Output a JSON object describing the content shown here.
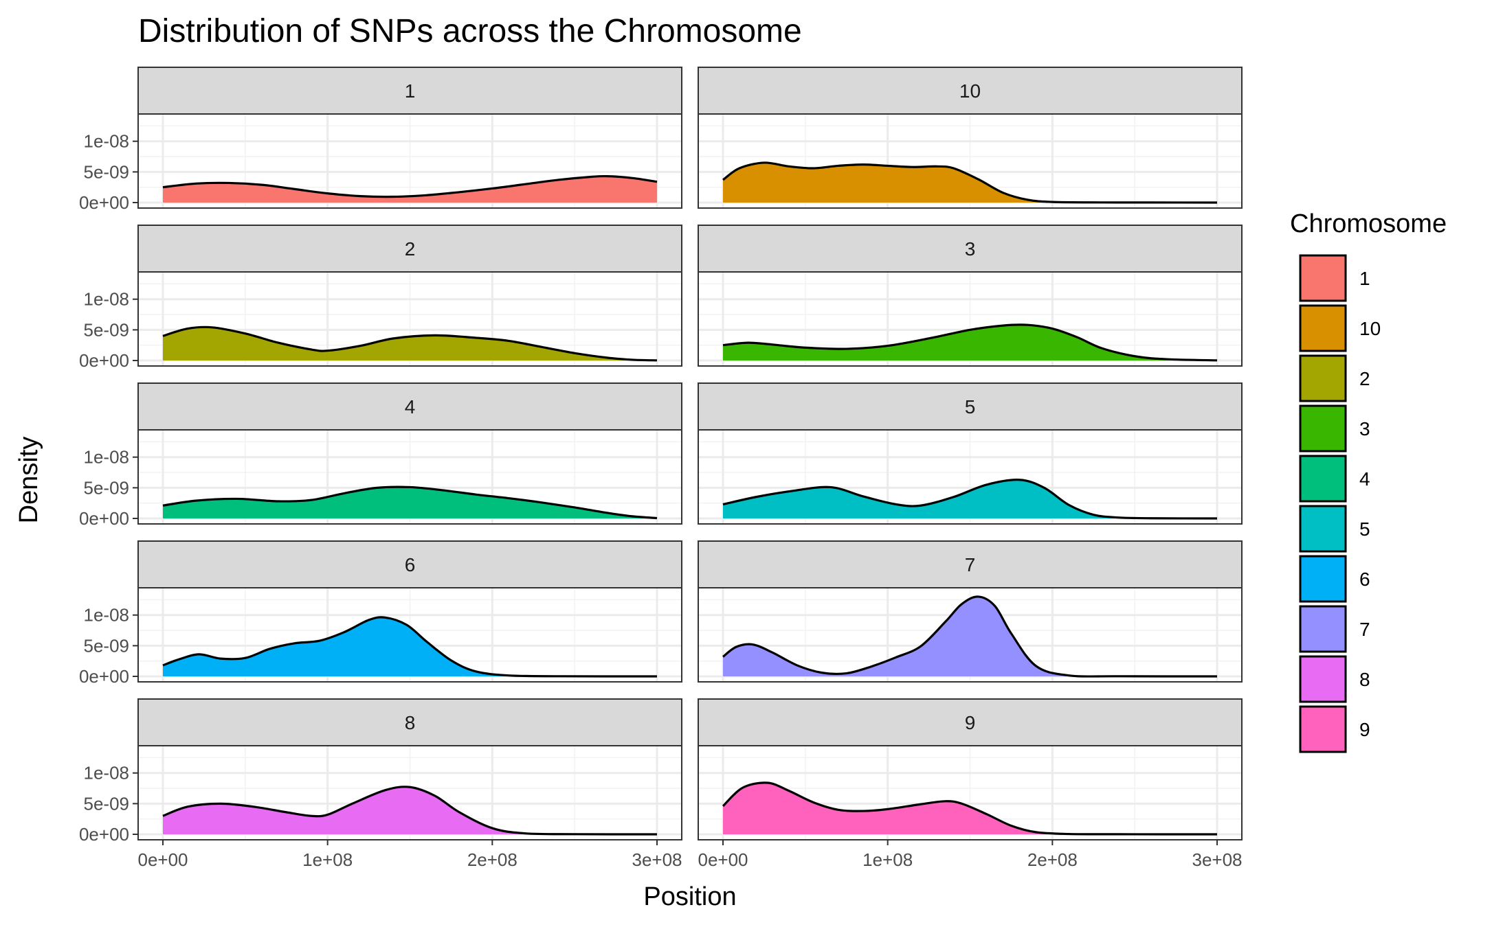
{
  "chart_data": {
    "type": "area",
    "subtype": "faceted-density",
    "title": "Distribution of SNPs across the Chromosome",
    "xlabel": "Position",
    "ylabel": "Density",
    "xlim": [
      0,
      300000000
    ],
    "ylim": [
      0,
      1.4e-08
    ],
    "x_ticks": [
      {
        "value": 0,
        "label": "0e+00"
      },
      {
        "value": 100000000,
        "label": "1e+08"
      },
      {
        "value": 200000000,
        "label": "2e+08"
      },
      {
        "value": 300000000,
        "label": "3e+08"
      }
    ],
    "y_ticks": [
      {
        "value": 0,
        "label": "0e+00"
      },
      {
        "value": 5e-09,
        "label": "5e-09"
      },
      {
        "value": 1e-08,
        "label": "1e-08"
      }
    ],
    "legend": {
      "title": "Chromosome",
      "position": "right",
      "entries": [
        {
          "label": "1",
          "color": "#F8766D"
        },
        {
          "label": "10",
          "color": "#D89000"
        },
        {
          "label": "2",
          "color": "#A3A500"
        },
        {
          "label": "3",
          "color": "#39B600"
        },
        {
          "label": "4",
          "color": "#00BF7D"
        },
        {
          "label": "5",
          "color": "#00BFC4"
        },
        {
          "label": "6",
          "color": "#00B0F6"
        },
        {
          "label": "7",
          "color": "#9590FF"
        },
        {
          "label": "8",
          "color": "#E76BF3"
        },
        {
          "label": "9",
          "color": "#FF62BC"
        }
      ]
    },
    "panel_order": [
      "1",
      "10",
      "2",
      "3",
      "4",
      "5",
      "6",
      "7",
      "8",
      "9"
    ],
    "series": [
      {
        "name": "1",
        "color": "#F8766D",
        "x": [
          0,
          20000000,
          40000000,
          60000000,
          80000000,
          100000000,
          120000000,
          140000000,
          160000000,
          180000000,
          200000000,
          220000000,
          240000000,
          260000000,
          270000000,
          285000000,
          300000000
        ],
        "y": [
          2.5e-09,
          3.1e-09,
          3.2e-09,
          2.9e-09,
          2.2e-09,
          1.5e-09,
          1.05e-09,
          9.5e-10,
          1.2e-09,
          1.7e-09,
          2.3e-09,
          3e-09,
          3.7e-09,
          4.2e-09,
          4.3e-09,
          4e-09,
          3.4e-09
        ]
      },
      {
        "name": "10",
        "color": "#D89000",
        "x": [
          0,
          10000000,
          25000000,
          40000000,
          55000000,
          70000000,
          85000000,
          100000000,
          115000000,
          130000000,
          140000000,
          155000000,
          170000000,
          185000000,
          200000000,
          230000000,
          260000000,
          300000000
        ],
        "y": [
          3.7e-09,
          5.6e-09,
          6.5e-09,
          5.9e-09,
          5.6e-09,
          6e-09,
          6.2e-09,
          6e-09,
          5.8e-09,
          5.9e-09,
          5.6e-09,
          3.8e-09,
          1.6e-09,
          4.5e-10,
          1e-10,
          2e-11,
          1e-11,
          0.0
        ]
      },
      {
        "name": "2",
        "color": "#A3A500",
        "x": [
          0,
          15000000,
          30000000,
          50000000,
          70000000,
          90000000,
          100000000,
          120000000,
          140000000,
          165000000,
          190000000,
          210000000,
          230000000,
          250000000,
          270000000,
          285000000,
          300000000
        ],
        "y": [
          4e-09,
          5.2e-09,
          5.4e-09,
          4.4e-09,
          2.9e-09,
          1.8e-09,
          1.6e-09,
          2.4e-09,
          3.6e-09,
          4.1e-09,
          3.7e-09,
          3.2e-09,
          2.2e-09,
          1.2e-09,
          4.5e-10,
          1.2e-10,
          2e-11
        ]
      },
      {
        "name": "3",
        "color": "#39B600",
        "x": [
          0,
          15000000,
          30000000,
          50000000,
          75000000,
          100000000,
          125000000,
          150000000,
          170000000,
          185000000,
          200000000,
          215000000,
          230000000,
          250000000,
          270000000,
          300000000
        ],
        "y": [
          2.5e-09,
          2.9e-09,
          2.6e-09,
          2.1e-09,
          1.9e-09,
          2.4e-09,
          3.6e-09,
          5e-09,
          5.7e-09,
          5.8e-09,
          5.2e-09,
          3.8e-09,
          2e-09,
          7e-10,
          2e-10,
          2e-11
        ]
      },
      {
        "name": "4",
        "color": "#00BF7D",
        "x": [
          0,
          20000000,
          45000000,
          70000000,
          90000000,
          110000000,
          130000000,
          150000000,
          170000000,
          190000000,
          210000000,
          230000000,
          250000000,
          270000000,
          285000000,
          300000000
        ],
        "y": [
          2.1e-09,
          2.9e-09,
          3.2e-09,
          2.8e-09,
          3e-09,
          4.1e-09,
          5e-09,
          5.1e-09,
          4.6e-09,
          3.9e-09,
          3.3e-09,
          2.6e-09,
          1.8e-09,
          9e-10,
          3.5e-10,
          5e-11
        ]
      },
      {
        "name": "5",
        "color": "#00BFC4",
        "x": [
          0,
          20000000,
          40000000,
          65000000,
          85000000,
          105000000,
          120000000,
          140000000,
          160000000,
          180000000,
          195000000,
          210000000,
          225000000,
          240000000,
          260000000,
          300000000
        ],
        "y": [
          2.3e-09,
          3.5e-09,
          4.4e-09,
          5.1e-09,
          3.6e-09,
          2.3e-09,
          2.1e-09,
          3.5e-09,
          5.5e-09,
          6.3e-09,
          5e-09,
          2.2e-09,
          6e-10,
          1.5e-10,
          3e-11,
          0.0
        ]
      },
      {
        "name": "6",
        "color": "#00B0F6",
        "x": [
          0,
          10000000,
          22000000,
          35000000,
          50000000,
          65000000,
          80000000,
          95000000,
          110000000,
          125000000,
          135000000,
          148000000,
          160000000,
          175000000,
          190000000,
          210000000,
          240000000,
          300000000
        ],
        "y": [
          1.8e-09,
          2.8e-09,
          3.6e-09,
          2.9e-09,
          3e-09,
          4.5e-09,
          5.4e-09,
          5.8e-09,
          7.2e-09,
          9.2e-09,
          9.6e-09,
          8.4e-09,
          5.7e-09,
          2.6e-09,
          8e-10,
          1.5e-10,
          2e-11,
          0.0
        ]
      },
      {
        "name": "7",
        "color": "#9590FF",
        "x": [
          0,
          8000000,
          18000000,
          30000000,
          45000000,
          60000000,
          75000000,
          90000000,
          105000000,
          120000000,
          135000000,
          145000000,
          155000000,
          165000000,
          175000000,
          190000000,
          210000000,
          240000000,
          300000000
        ],
        "y": [
          3.2e-09,
          4.8e-09,
          5.2e-09,
          3.9e-09,
          1.8e-09,
          6e-10,
          5e-10,
          1.6e-09,
          3.1e-09,
          4.9e-09,
          8.9e-09,
          1.18e-08,
          1.3e-08,
          1.15e-08,
          7e-09,
          1.7e-09,
          1.5e-10,
          2e-11,
          0.0
        ]
      },
      {
        "name": "8",
        "color": "#E76BF3",
        "x": [
          0,
          15000000,
          35000000,
          55000000,
          75000000,
          90000000,
          100000000,
          115000000,
          135000000,
          150000000,
          165000000,
          180000000,
          200000000,
          220000000,
          250000000,
          300000000
        ],
        "y": [
          3e-09,
          4.5e-09,
          5e-09,
          4.5e-09,
          3.6e-09,
          3e-09,
          3.2e-09,
          5e-09,
          7.2e-09,
          7.7e-09,
          6.3e-09,
          3.6e-09,
          1e-09,
          1.5e-10,
          2e-11,
          0.0
        ]
      },
      {
        "name": "9",
        "color": "#FF62BC",
        "x": [
          0,
          12000000,
          27000000,
          40000000,
          55000000,
          70000000,
          85000000,
          100000000,
          120000000,
          135000000,
          145000000,
          160000000,
          175000000,
          190000000,
          210000000,
          240000000,
          300000000
        ],
        "y": [
          4.6e-09,
          7.6e-09,
          8.4e-09,
          7.1e-09,
          5.2e-09,
          4e-09,
          3.8e-09,
          4.1e-09,
          4.9e-09,
          5.4e-09,
          5e-09,
          3.3e-09,
          1.4e-09,
          3.5e-10,
          5e-11,
          1e-11,
          0.0
        ]
      }
    ]
  }
}
